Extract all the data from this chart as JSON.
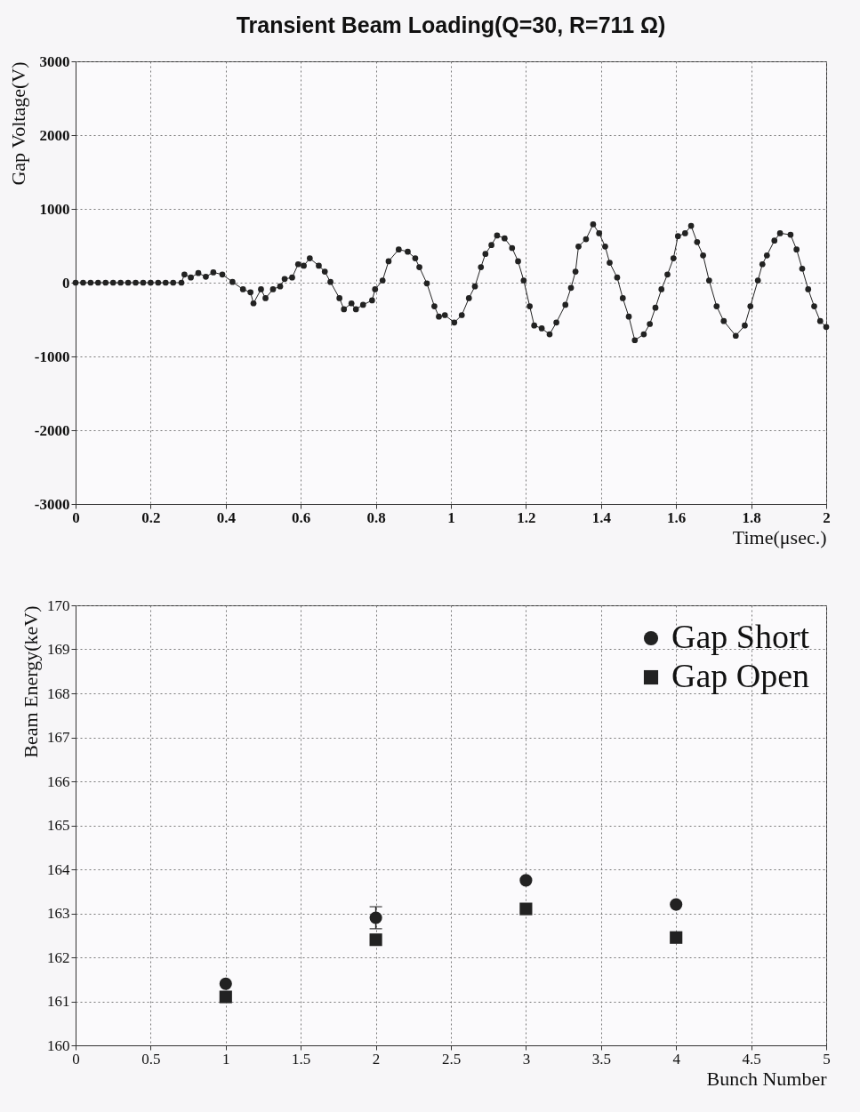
{
  "chart_data": [
    {
      "type": "line",
      "title": "Transient Beam Loading(Q=30, R=711 Ω)",
      "xlabel": "Time(μsec.)",
      "ylabel": "Gap Voltage(V)",
      "xlim": [
        0,
        2
      ],
      "xticks": [
        0,
        0.2,
        0.4,
        0.6,
        0.8,
        1,
        1.2,
        1.4,
        1.6,
        1.8,
        2
      ],
      "ylim": [
        -3000,
        3000
      ],
      "yticks": [
        -3000,
        -2000,
        -1000,
        0,
        1000,
        2000,
        3000
      ],
      "grid": true,
      "marker": "circle",
      "line_style": "solid",
      "legend": false,
      "series": [
        {
          "color": "#222222",
          "x": [
            0,
            0.02,
            0.04,
            0.06,
            0.08,
            0.1,
            0.12,
            0.14,
            0.16,
            0.18,
            0.2,
            0.22,
            0.24,
            0.26,
            0.282,
            0.29,
            0.307,
            0.327,
            0.347,
            0.367,
            0.391,
            0.418,
            0.446,
            0.466,
            0.474,
            0.494,
            0.506,
            0.526,
            0.545,
            0.557,
            0.577,
            0.593,
            0.608,
            0.624,
            0.648,
            0.664,
            0.679,
            0.703,
            0.715,
            0.735,
            0.747,
            0.766,
            0.79,
            0.798,
            0.818,
            0.834,
            0.861,
            0.885,
            0.905,
            0.916,
            0.936,
            0.956,
            0.968,
            0.984,
            1.009,
            1.029,
            1.048,
            1.064,
            1.08,
            1.092,
            1.108,
            1.123,
            1.143,
            1.163,
            1.179,
            1.194,
            1.21,
            1.222,
            1.242,
            1.263,
            1.281,
            1.305,
            1.32,
            1.332,
            1.34,
            1.36,
            1.379,
            1.395,
            1.411,
            1.423,
            1.443,
            1.458,
            1.474,
            1.49,
            1.514,
            1.53,
            1.545,
            1.561,
            1.577,
            1.593,
            1.605,
            1.624,
            1.64,
            1.656,
            1.672,
            1.688,
            1.708,
            1.727,
            1.759,
            1.783,
            1.798,
            1.818,
            1.83,
            1.842,
            1.862,
            1.877,
            1.905,
            1.921,
            1.936,
            1.952,
            1.968,
            1.984,
            2.0
          ],
          "values": [
            0,
            0,
            0,
            0,
            0,
            0,
            0,
            0,
            0,
            0,
            0,
            0,
            0,
            0,
            0,
            110,
            70,
            130,
            80,
            140,
            110,
            10,
            -90,
            -130,
            -280,
            -90,
            -210,
            -90,
            -50,
            50,
            70,
            250,
            230,
            330,
            230,
            150,
            10,
            -210,
            -360,
            -280,
            -360,
            -300,
            -240,
            -90,
            30,
            290,
            450,
            420,
            330,
            210,
            -10,
            -320,
            -460,
            -440,
            -540,
            -440,
            -210,
            -50,
            210,
            390,
            510,
            640,
            600,
            470,
            290,
            30,
            -320,
            -580,
            -620,
            -700,
            -540,
            -300,
            -70,
            150,
            490,
            590,
            790,
            670,
            490,
            270,
            70,
            -210,
            -460,
            -780,
            -700,
            -560,
            -340,
            -90,
            110,
            330,
            630,
            670,
            770,
            550,
            370,
            30,
            -320,
            -520,
            -720,
            -580,
            -320,
            30,
            250,
            370,
            570,
            670,
            650,
            450,
            190,
            -90,
            -320,
            -520,
            -600
          ]
        }
      ]
    },
    {
      "type": "scatter",
      "xlabel": "Bunch Number",
      "ylabel": "Beam Energy(keV)",
      "xlim": [
        0,
        5
      ],
      "xticks": [
        0,
        0.5,
        1,
        1.5,
        2,
        2.5,
        3,
        3.5,
        4,
        4.5,
        5
      ],
      "ylim": [
        160,
        170
      ],
      "yticks": [
        160,
        161,
        162,
        163,
        164,
        165,
        166,
        167,
        168,
        169,
        170
      ],
      "grid": true,
      "legend": "top right",
      "x": [
        1,
        2,
        3,
        4
      ],
      "series": [
        {
          "name": "Gap Short",
          "color": "#222222",
          "marker": "circle",
          "values": [
            161.4,
            162.9,
            163.75,
            163.2
          ],
          "errors": [
            null,
            0.25,
            null,
            null
          ]
        },
        {
          "name": "Gap Open",
          "color": "#222222",
          "marker": "square",
          "values": [
            161.1,
            162.4,
            163.1,
            162.45
          ]
        }
      ]
    }
  ]
}
